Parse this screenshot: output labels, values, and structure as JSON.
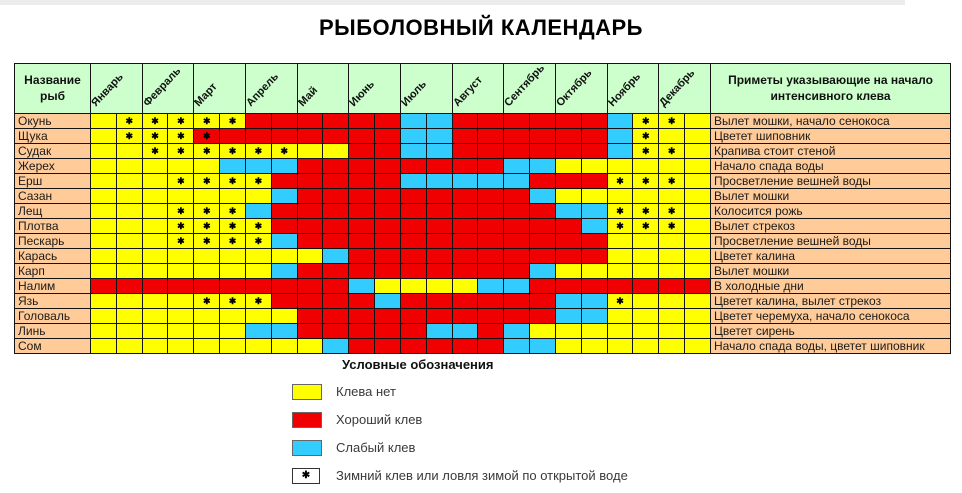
{
  "title": "РЫБОЛОВНЫЙ КАЛЕНДАРЬ",
  "table": {
    "name_header": "Название рыб",
    "notes_header": "Приметы указывающие на начало интенсивного клева"
  },
  "star_glyph": "✱",
  "colors": {
    "no_bite": "#FFFF00",
    "good_bite": "#F00000",
    "weak_bite": "#33CCFF",
    "header_bg": "#CCFFCC",
    "label_bg": "#FFCC99"
  },
  "legend": {
    "title": "Условные обозначения",
    "items": [
      {
        "swatch": "yellow",
        "label": "Клева нет"
      },
      {
        "swatch": "red",
        "label": "Хороший клев"
      },
      {
        "swatch": "blue",
        "label": "Слабый клев"
      },
      {
        "swatch": "star",
        "label": "Зимний клев или ловля зимой по открытой воде"
      }
    ]
  },
  "chart_data": {
    "type": "heatmap",
    "title": "РЫБОЛОВНЫЙ КАЛЕНДАРЬ",
    "months": [
      "Январь",
      "Февраль",
      "Март",
      "Апрель",
      "Май",
      "Июнь",
      "Июль",
      "Август",
      "Сентябрь",
      "Октябрь",
      "Ноябрь",
      "Декабрь"
    ],
    "half_columns_per_month": 2,
    "cell_legend": {
      "y": "Клева нет (желтый)",
      "r": "Хороший клев (красный)",
      "b": "Слабый клев (голубой)",
      "s": "суффикс s = звёздочка: зимний клев или ловля зимой по открытой воде"
    },
    "rows": [
      {
        "fish": "Окунь",
        "cells": [
          "y",
          "ys",
          "ys",
          "ys",
          "ys",
          "ys",
          "r",
          "r",
          "r",
          "r",
          "r",
          "r",
          "b",
          "b",
          "r",
          "r",
          "r",
          "r",
          "r",
          "r",
          "b",
          "ys",
          "ys",
          "y"
        ],
        "note": "Вылет мошки, начало сенокоса"
      },
      {
        "fish": "Щука",
        "cells": [
          "y",
          "ys",
          "ys",
          "ys",
          "rs",
          "r",
          "r",
          "r",
          "r",
          "r",
          "r",
          "r",
          "b",
          "b",
          "r",
          "r",
          "r",
          "r",
          "r",
          "r",
          "b",
          "ys",
          "y",
          "y"
        ],
        "note": "Цветет шиповник"
      },
      {
        "fish": "Судак",
        "cells": [
          "y",
          "y",
          "ys",
          "ys",
          "ys",
          "ys",
          "ys",
          "ys",
          "y",
          "y",
          "r",
          "r",
          "b",
          "b",
          "r",
          "r",
          "r",
          "r",
          "r",
          "r",
          "b",
          "ys",
          "ys",
          "y"
        ],
        "note": "Крапива стоит стеной"
      },
      {
        "fish": "Жерех",
        "cells": [
          "y",
          "y",
          "y",
          "y",
          "y",
          "b",
          "b",
          "b",
          "r",
          "r",
          "r",
          "r",
          "r",
          "r",
          "r",
          "r",
          "b",
          "b",
          "y",
          "y",
          "y",
          "y",
          "y",
          "y"
        ],
        "note": "Начало спада воды"
      },
      {
        "fish": "Ерш",
        "cells": [
          "y",
          "y",
          "y",
          "ys",
          "ys",
          "ys",
          "ys",
          "r",
          "r",
          "r",
          "r",
          "r",
          "b",
          "b",
          "b",
          "b",
          "b",
          "r",
          "r",
          "r",
          "ys",
          "ys",
          "ys",
          "y"
        ],
        "note": "Просветление вешней воды"
      },
      {
        "fish": "Сазан",
        "cells": [
          "y",
          "y",
          "y",
          "y",
          "y",
          "y",
          "y",
          "b",
          "r",
          "r",
          "r",
          "r",
          "r",
          "r",
          "r",
          "r",
          "r",
          "b",
          "y",
          "y",
          "y",
          "y",
          "y",
          "y"
        ],
        "note": "Вылет мошки"
      },
      {
        "fish": "Лещ",
        "cells": [
          "y",
          "y",
          "y",
          "ys",
          "ys",
          "ys",
          "b",
          "r",
          "r",
          "r",
          "r",
          "r",
          "r",
          "r",
          "r",
          "r",
          "r",
          "r",
          "b",
          "b",
          "ys",
          "ys",
          "ys",
          "y"
        ],
        "note": "Колосится рожь"
      },
      {
        "fish": "Плотва",
        "cells": [
          "y",
          "y",
          "y",
          "ys",
          "ys",
          "ys",
          "ys",
          "r",
          "r",
          "r",
          "r",
          "r",
          "r",
          "r",
          "r",
          "r",
          "r",
          "r",
          "r",
          "b",
          "ys",
          "ys",
          "ys",
          "y"
        ],
        "note": "Вылет стрекоз"
      },
      {
        "fish": "Пескарь",
        "cells": [
          "y",
          "y",
          "y",
          "ys",
          "ys",
          "ys",
          "ys",
          "b",
          "r",
          "r",
          "r",
          "r",
          "r",
          "r",
          "r",
          "r",
          "r",
          "r",
          "r",
          "r",
          "y",
          "y",
          "y",
          "y"
        ],
        "note": "Просветление вешней воды"
      },
      {
        "fish": "Карась",
        "cells": [
          "y",
          "y",
          "y",
          "y",
          "y",
          "y",
          "y",
          "y",
          "y",
          "b",
          "r",
          "r",
          "r",
          "r",
          "r",
          "r",
          "r",
          "r",
          "r",
          "r",
          "y",
          "y",
          "y",
          "y"
        ],
        "note": "Цветет калина"
      },
      {
        "fish": "Карп",
        "cells": [
          "y",
          "y",
          "y",
          "y",
          "y",
          "y",
          "y",
          "b",
          "r",
          "r",
          "r",
          "r",
          "r",
          "r",
          "r",
          "r",
          "r",
          "b",
          "y",
          "y",
          "y",
          "y",
          "y",
          "y"
        ],
        "note": "Вылет мошки"
      },
      {
        "fish": "Налим",
        "cells": [
          "r",
          "r",
          "r",
          "r",
          "r",
          "r",
          "r",
          "r",
          "r",
          "r",
          "b",
          "y",
          "y",
          "y",
          "y",
          "b",
          "b",
          "r",
          "r",
          "r",
          "r",
          "r",
          "r",
          "r"
        ],
        "note": "В холодные дни"
      },
      {
        "fish": "Язь",
        "cells": [
          "y",
          "y",
          "y",
          "y",
          "ys",
          "ys",
          "ys",
          "r",
          "r",
          "r",
          "r",
          "b",
          "r",
          "r",
          "r",
          "r",
          "r",
          "r",
          "b",
          "b",
          "ys",
          "y",
          "y",
          "y"
        ],
        "note": "Цветет калина, вылет стрекоз"
      },
      {
        "fish": "Головаль",
        "cells": [
          "y",
          "y",
          "y",
          "y",
          "y",
          "y",
          "y",
          "y",
          "r",
          "r",
          "r",
          "r",
          "r",
          "r",
          "r",
          "r",
          "r",
          "r",
          "b",
          "b",
          "y",
          "y",
          "y",
          "y"
        ],
        "note": "Цветет черемуха, начало сенокоса"
      },
      {
        "fish": "Линь",
        "cells": [
          "y",
          "y",
          "y",
          "y",
          "y",
          "y",
          "b",
          "b",
          "r",
          "r",
          "r",
          "r",
          "r",
          "b",
          "b",
          "r",
          "b",
          "y",
          "y",
          "y",
          "y",
          "y",
          "y",
          "y"
        ],
        "note": "Цветет сирень"
      },
      {
        "fish": "Сом",
        "cells": [
          "y",
          "y",
          "y",
          "y",
          "y",
          "y",
          "y",
          "y",
          "y",
          "b",
          "r",
          "r",
          "r",
          "r",
          "r",
          "r",
          "b",
          "b",
          "y",
          "y",
          "y",
          "y",
          "y",
          "y"
        ],
        "note": "Начало спада воды, цветет шиповник"
      }
    ]
  }
}
